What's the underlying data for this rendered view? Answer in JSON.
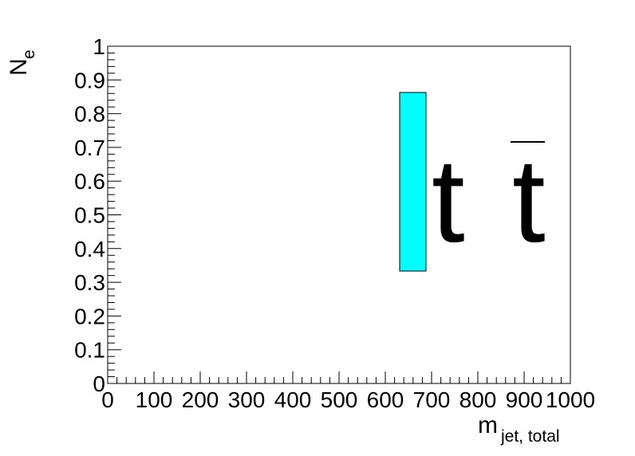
{
  "chart_data": {
    "type": "legend-only",
    "xlabel": {
      "main": "m",
      "sub": "jet, total"
    },
    "ylabel": {
      "main": "N",
      "sub": "e"
    },
    "xlim": [
      0,
      1000
    ],
    "ylim": [
      0,
      1
    ],
    "x_ticks": [
      "0",
      "100",
      "200",
      "300",
      "400",
      "500",
      "600",
      "700",
      "800",
      "900",
      "1000"
    ],
    "y_ticks": [
      "0",
      "0.1",
      "0.2",
      "0.3",
      "0.4",
      "0.5",
      "0.6",
      "0.7",
      "0.8",
      "0.9",
      "1"
    ],
    "grid": false,
    "series": [],
    "legend": {
      "placement": "top-right",
      "entries": [
        {
          "label_parts": [
            "t",
            "t"
          ],
          "overline_second": true,
          "color": "#00ffff"
        }
      ]
    }
  }
}
